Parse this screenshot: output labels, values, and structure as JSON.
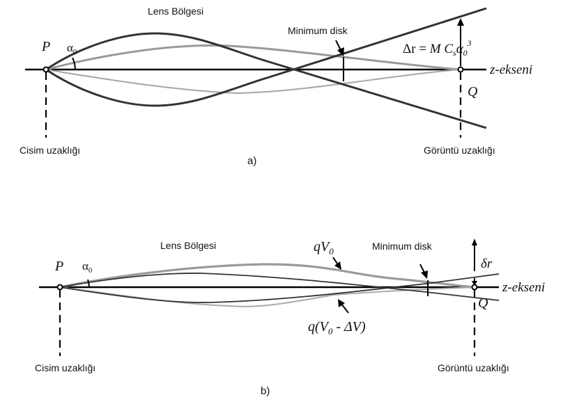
{
  "panel_a": {
    "lens_region": "Lens Bölgesi",
    "minimum_disk": "Minimum disk",
    "point_p": "P",
    "point_q": "Q",
    "alpha": "α",
    "alpha_sub": "0",
    "axis": "z-ekseni",
    "delta_r_lhs": "Δr = ",
    "delta_r_m": "M C",
    "delta_r_s": "s",
    "delta_r_alpha": "α",
    "delta_r_0": "0",
    "delta_r_exp": "3",
    "object_distance": "Cisim uzaklığı",
    "image_distance": "Görüntü uzaklığı",
    "caption": "a)"
  },
  "panel_b": {
    "lens_region": "Lens Bölgesi",
    "minimum_disk": "Minimum disk",
    "point_p": "P",
    "point_q": "Q",
    "alpha": "α",
    "alpha_sub": "0",
    "axis": "z-ekseni",
    "qv0_q": "qV",
    "qv0_sub": "0",
    "qdv_a": "q(V",
    "qdv_sub": "0",
    "qdv_b": " - ΔV)",
    "delta_r_small": "δr",
    "object_distance": "Cisim uzaklığı",
    "image_distance": "Görüntü uzaklığı",
    "caption": "b)"
  },
  "colors": {
    "dark_ray": "#333333",
    "light_ray": "#9a9a9a",
    "axis": "#000000"
  }
}
